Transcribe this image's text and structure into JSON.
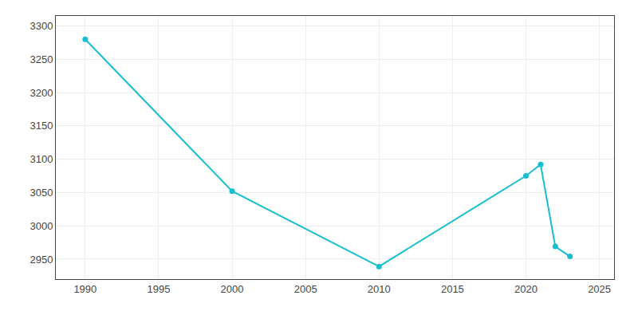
{
  "chart_data": {
    "type": "line",
    "x": [
      1990,
      2000,
      2010,
      2020,
      2021,
      2022,
      2023
    ],
    "values": [
      3280,
      3052,
      2939,
      3075,
      3092,
      2969,
      2954
    ],
    "color": "#17BECF",
    "marker": "circle",
    "xlim": [
      1988,
      2026
    ],
    "ylim": [
      2920,
      3315
    ],
    "xticks": [
      1990,
      1995,
      2000,
      2005,
      2010,
      2015,
      2020,
      2025
    ],
    "yticks": [
      2950,
      3000,
      3050,
      3100,
      3150,
      3200,
      3250,
      3300
    ],
    "grid": true
  }
}
